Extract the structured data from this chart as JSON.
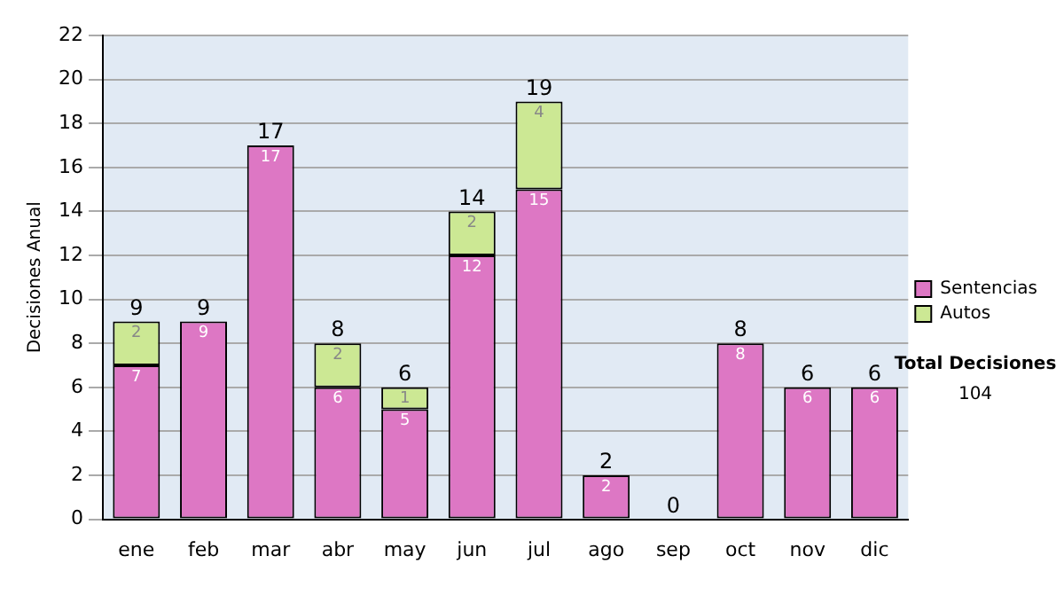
{
  "chart_data": {
    "type": "bar",
    "stacked": true,
    "ylabel": "Decisiones Anual",
    "categories": [
      "ene",
      "feb",
      "mar",
      "abr",
      "may",
      "jun",
      "jul",
      "ago",
      "sep",
      "oct",
      "nov",
      "dic"
    ],
    "series": [
      {
        "name": "Sentencias",
        "color": "#dd77c4",
        "values": [
          7,
          9,
          17,
          6,
          5,
          12,
          15,
          2,
          0,
          8,
          6,
          6
        ],
        "value_labels": [
          "7",
          "9",
          "17",
          "6",
          "5",
          "12",
          "15",
          "2",
          null,
          "8",
          "6",
          "6"
        ]
      },
      {
        "name": "Autos",
        "color": "#cce894",
        "values": [
          2,
          0,
          0,
          2,
          1,
          2,
          4,
          0,
          0,
          0,
          0,
          0
        ],
        "value_labels": [
          "2",
          null,
          null,
          "2",
          "1",
          "2",
          "4",
          null,
          null,
          null,
          null,
          null
        ]
      }
    ],
    "totals": [
      "9",
      "9",
      "17",
      "8",
      "6",
      "14",
      "19",
      "2",
      "0",
      "8",
      "6",
      "6"
    ],
    "ylim": [
      0,
      22
    ],
    "yticks": [
      0,
      2,
      4,
      6,
      8,
      10,
      12,
      14,
      16,
      18,
      20,
      22
    ],
    "grid": "y",
    "legend": "right",
    "annotations": [
      "Total Decisiones",
      "104"
    ]
  }
}
